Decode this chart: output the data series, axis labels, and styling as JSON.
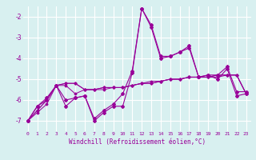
{
  "x": [
    0,
    1,
    2,
    3,
    4,
    5,
    6,
    7,
    8,
    9,
    10,
    11,
    12,
    13,
    14,
    15,
    16,
    17,
    18,
    19,
    20,
    21,
    22,
    23
  ],
  "line1": [
    -7.0,
    -6.3,
    -6.0,
    -5.3,
    -6.3,
    -5.9,
    -5.8,
    -7.0,
    -6.6,
    -6.3,
    -6.3,
    -4.7,
    -1.6,
    -2.5,
    -4.0,
    -3.9,
    -3.7,
    -3.5,
    -4.9,
    -4.8,
    -5.0,
    -4.5,
    -5.8,
    -5.7
  ],
  "line2": [
    -7.0,
    -6.3,
    -5.9,
    -5.3,
    -6.0,
    -5.9,
    -5.8,
    -6.9,
    -6.5,
    -6.2,
    -5.7,
    -4.6,
    -1.6,
    -2.4,
    -3.9,
    -3.9,
    -3.7,
    -3.4,
    -4.9,
    -4.8,
    -4.8,
    -4.4,
    -5.6,
    -5.6
  ],
  "line3_slope": [
    -7.0,
    -6.6,
    -6.2,
    -5.3,
    -5.2,
    -5.2,
    -5.5,
    -5.5,
    -5.5,
    -5.4,
    -5.4,
    -5.3,
    -5.2,
    -5.2,
    -5.1,
    -5.0,
    -5.0,
    -4.9,
    -4.9,
    -4.9,
    -4.8,
    -4.8,
    -4.8,
    -5.7
  ],
  "line4_slope": [
    -7.0,
    -6.5,
    -6.0,
    -5.3,
    -5.2,
    -5.2,
    -5.5,
    -5.5,
    -5.4,
    -5.4,
    -5.4,
    -5.3,
    -5.2,
    -5.2,
    -5.1,
    -5.0,
    -5.0,
    -4.9,
    -4.9,
    -4.9,
    -4.9,
    -4.8,
    -4.8,
    -5.7
  ],
  "line5_flat": [
    -7.0,
    -6.5,
    -6.0,
    -5.3,
    -5.3,
    -5.7,
    -5.5,
    -5.5,
    -5.4,
    -5.4,
    -5.4,
    -5.3,
    -5.2,
    -5.1,
    -5.1,
    -5.0,
    -5.0,
    -4.9,
    -4.9,
    -4.9,
    -4.8,
    -4.8,
    -4.8,
    -5.7
  ],
  "color": "#990099",
  "bg_color": "#d8f0f0",
  "grid_color": "#ffffff",
  "xlabel": "Windchill (Refroidissement éolien,°C)",
  "xlim": [
    -0.5,
    23.5
  ],
  "ylim": [
    -7.5,
    -1.5
  ],
  "yticks": [
    -7,
    -6,
    -5,
    -4,
    -3,
    -2
  ],
  "xticks": [
    0,
    1,
    2,
    3,
    4,
    5,
    6,
    7,
    8,
    9,
    10,
    11,
    12,
    13,
    14,
    15,
    16,
    17,
    18,
    19,
    20,
    21,
    22,
    23
  ]
}
